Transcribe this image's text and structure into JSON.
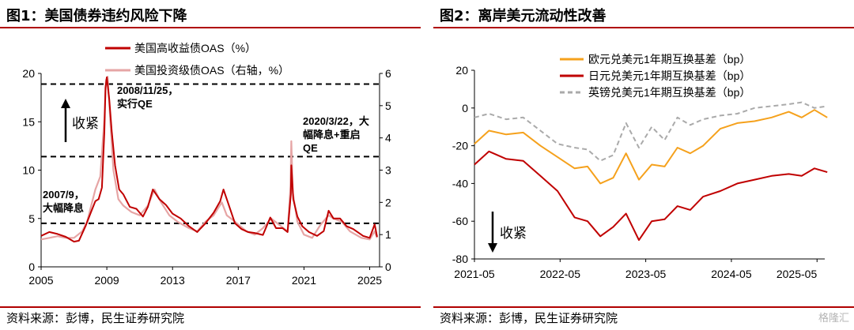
{
  "left": {
    "title": "图1：美国债券违约风险下降",
    "source": "资料来源：彭博，民生证券研究院",
    "chart_data": {
      "type": "line",
      "title": "",
      "xlabel": "",
      "ylabel": "",
      "x_ticks": [
        "2005",
        "2009",
        "2013",
        "2017",
        "2021",
        "2025"
      ],
      "ylim": [
        0,
        20
      ],
      "y_ticks": [
        "0",
        "5",
        "10",
        "15",
        "20"
      ],
      "ylim_right": [
        0,
        6
      ],
      "y_ticks_right": [
        "0",
        "1",
        "2",
        "3",
        "4",
        "5",
        "6"
      ],
      "legend_position": "top-center",
      "series": [
        {
          "name": "美国高收益债OAS（%）",
          "axis": "left",
          "color": "#c00000",
          "x": [
            2005.0,
            2005.5,
            2006.0,
            2006.5,
            2007.0,
            2007.3,
            2007.7,
            2008.0,
            2008.3,
            2008.5,
            2008.7,
            2008.85,
            2008.92,
            2009.0,
            2009.15,
            2009.3,
            2009.5,
            2009.75,
            2010.0,
            2010.4,
            2010.8,
            2011.2,
            2011.5,
            2011.8,
            2012.2,
            2012.6,
            2013.0,
            2013.5,
            2014.0,
            2014.5,
            2015.0,
            2015.5,
            2015.9,
            2016.1,
            2016.4,
            2016.8,
            2017.2,
            2017.6,
            2018.0,
            2018.5,
            2018.95,
            2019.3,
            2019.7,
            2020.0,
            2020.2,
            2020.23,
            2020.35,
            2020.6,
            2020.9,
            2021.3,
            2021.8,
            2022.2,
            2022.5,
            2022.8,
            2023.2,
            2023.6,
            2024.0,
            2024.6,
            2025.0,
            2025.3,
            2025.45
          ],
          "y": [
            3.2,
            3.6,
            3.4,
            3.1,
            2.6,
            2.7,
            4.2,
            5.5,
            6.8,
            7.0,
            8.2,
            14.0,
            18.5,
            19.6,
            17.3,
            14.0,
            10.5,
            8.0,
            7.5,
            6.2,
            6.0,
            5.2,
            6.2,
            8.0,
            7.0,
            6.4,
            5.5,
            5.0,
            4.2,
            3.6,
            4.5,
            5.6,
            6.8,
            8.0,
            6.5,
            4.5,
            3.9,
            3.6,
            3.5,
            3.3,
            5.1,
            4.0,
            4.0,
            3.6,
            7.5,
            10.5,
            7.0,
            5.2,
            4.2,
            3.6,
            3.2,
            3.7,
            5.8,
            5.0,
            5.0,
            4.2,
            3.9,
            3.2,
            3.0,
            4.4,
            3.1
          ]
        },
        {
          "name": "美国投资级债OAS（右轴，%）",
          "axis": "right",
          "color": "#e6a5a5",
          "x": [
            2005.0,
            2005.5,
            2006.0,
            2006.5,
            2007.0,
            2007.5,
            2007.8,
            2008.0,
            2008.3,
            2008.6,
            2008.85,
            2008.95,
            2009.05,
            2009.2,
            2009.4,
            2009.7,
            2010.0,
            2010.5,
            2011.0,
            2011.5,
            2011.9,
            2012.3,
            2012.8,
            2013.3,
            2014.0,
            2014.5,
            2015.0,
            2015.5,
            2016.0,
            2016.3,
            2016.8,
            2017.5,
            2018.0,
            2018.5,
            2019.0,
            2019.5,
            2020.0,
            2020.18,
            2020.23,
            2020.32,
            2020.6,
            2021.0,
            2021.5,
            2022.0,
            2022.5,
            2022.8,
            2023.3,
            2023.8,
            2024.5,
            2025.0,
            2025.3,
            2025.45
          ],
          "y": [
            0.85,
            0.9,
            0.95,
            0.9,
            0.9,
            1.1,
            1.4,
            1.8,
            2.4,
            2.8,
            4.6,
            5.8,
            5.9,
            4.6,
            3.0,
            2.1,
            1.9,
            1.7,
            1.6,
            1.9,
            2.4,
            2.0,
            1.6,
            1.4,
            1.2,
            1.1,
            1.4,
            1.6,
            2.0,
            1.6,
            1.4,
            1.1,
            1.0,
            1.2,
            1.5,
            1.3,
            1.1,
            2.5,
            3.9,
            2.3,
            1.4,
            1.0,
            0.9,
            1.3,
            1.6,
            1.5,
            1.4,
            1.1,
            0.9,
            0.85,
            1.1,
            0.9
          ]
        }
      ],
      "reference_lines": [
        18.9,
        11.4,
        4.5
      ],
      "annotations": [
        {
          "id": "a1",
          "lines": [
            "2008/11/25，",
            "实行QE"
          ]
        },
        {
          "id": "a2",
          "lines": [
            "2020/3/22，大",
            "幅降息+重启",
            "QE"
          ]
        },
        {
          "id": "a3",
          "lines": [
            "2007/9，",
            "大幅降息"
          ]
        },
        {
          "id": "a4",
          "lines": [
            "收紧"
          ]
        }
      ]
    }
  },
  "right": {
    "title": "图2：离岸美元流动性改善",
    "source": "资料来源：彭博，民生证券研究院",
    "watermark": "格隆汇",
    "chart_data": {
      "type": "line",
      "title": "",
      "xlabel": "",
      "ylabel": "",
      "x_ticks": [
        "2021-05",
        "2022-05",
        "2023-05",
        "2024-05",
        "2025-05"
      ],
      "ylim": [
        -80,
        20
      ],
      "y_ticks": [
        "-80",
        "-60",
        "-40",
        "-20",
        "0",
        "20"
      ],
      "legend_position": "top-right",
      "series": [
        {
          "name": "欧元兑美元1年期互换基差（bp）",
          "color": "#f5a11c",
          "dash": false,
          "x": [
            2021.33,
            2021.5,
            2021.7,
            2021.9,
            2022.1,
            2022.3,
            2022.5,
            2022.65,
            2022.8,
            2022.95,
            2023.1,
            2023.25,
            2023.4,
            2023.55,
            2023.7,
            2023.85,
            2024.0,
            2024.2,
            2024.4,
            2024.6,
            2024.8,
            2025.0,
            2025.15,
            2025.3,
            2025.45
          ],
          "y": [
            -19,
            -12,
            -14,
            -13,
            -20,
            -26,
            -32,
            -31,
            -40,
            -37,
            -24,
            -38,
            -30,
            -31,
            -21,
            -24,
            -20,
            -11,
            -8,
            -7,
            -5,
            -2,
            -5,
            -1,
            -5
          ]
        },
        {
          "name": "日元兑美元1年期互换基差（bp）",
          "color": "#c00000",
          "dash": false,
          "x": [
            2021.33,
            2021.5,
            2021.7,
            2021.9,
            2022.1,
            2022.3,
            2022.5,
            2022.65,
            2022.8,
            2022.95,
            2023.1,
            2023.25,
            2023.4,
            2023.55,
            2023.7,
            2023.85,
            2024.0,
            2024.2,
            2024.4,
            2024.6,
            2024.8,
            2025.0,
            2025.15,
            2025.3,
            2025.45
          ],
          "y": [
            -30,
            -23,
            -27,
            -28,
            -36,
            -44,
            -58,
            -60,
            -68,
            -63,
            -56,
            -70,
            -60,
            -59,
            -52,
            -54,
            -47,
            -44,
            -40,
            -38,
            -36,
            -35,
            -36,
            -32,
            -34
          ]
        },
        {
          "name": "英镑兑美元1年期互换基差（bp）",
          "color": "#aaaaaa",
          "dash": true,
          "x": [
            2021.33,
            2021.5,
            2021.7,
            2021.9,
            2022.1,
            2022.3,
            2022.5,
            2022.65,
            2022.8,
            2022.95,
            2023.1,
            2023.25,
            2023.4,
            2023.55,
            2023.7,
            2023.85,
            2024.0,
            2024.2,
            2024.4,
            2024.6,
            2024.8,
            2025.0,
            2025.15,
            2025.3,
            2025.45
          ],
          "y": [
            -5,
            -3,
            -6,
            -5,
            -12,
            -19,
            -21,
            -22,
            -28,
            -25,
            -8,
            -21,
            -10,
            -17,
            -5,
            -9,
            -6,
            -4,
            -3,
            0,
            1,
            2,
            3,
            0,
            1
          ]
        }
      ],
      "annotations": [
        {
          "id": "b1",
          "lines": [
            "收紧"
          ]
        }
      ]
    }
  }
}
